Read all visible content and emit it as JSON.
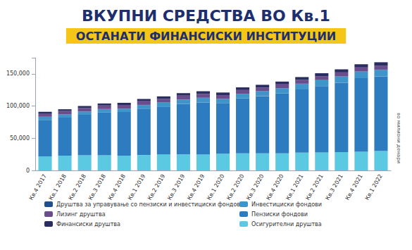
{
  "chart_data": {
    "type": "bar",
    "title": "ВКУПНИ СРЕДСТВА ВО Кв.1",
    "subtitle": "ОСТАНАТИ ФИНАНСИСКИ ИНСТИТУЦИИ",
    "annotation": "во милиони денари",
    "stacked": true,
    "grid": false,
    "categories": [
      "Кв.4 2017",
      "Кв.1 2018",
      "Кв.2 2018",
      "Кв.3 2018",
      "Кв.4 2018",
      "Кв.1 2019",
      "Кв.2 2019",
      "Кв.3 2019",
      "Кв.4 2019",
      "Кв.1 2020",
      "Кв.2 2020",
      "Кв.3 2020",
      "Кв.4 2020",
      "Кв.1 2021",
      "Кв.2 2021",
      "Кв.3 2021",
      "Кв.4 2021",
      "Кв.1 2022"
    ],
    "ylim": [
      0,
      175000
    ],
    "yticks": [
      0,
      {
        "value": 50000,
        "label": "50,000"
      },
      {
        "value": 100000,
        "label": "100,000"
      },
      {
        "value": 150000,
        "label": "150,000"
      }
    ],
    "series": [
      {
        "name": "Осигурителни друштва",
        "color": "#5cc9e3",
        "values": [
          22000,
          23000,
          23500,
          23500,
          23000,
          24000,
          24500,
          25000,
          25000,
          26000,
          26500,
          26500,
          26500,
          27500,
          28000,
          28500,
          29000,
          30000
        ]
      },
      {
        "name": "Пензиски фондови",
        "color": "#2e7cc0",
        "values": [
          56500,
          59000,
          62900,
          66600,
          67800,
          72000,
          74650,
          78350,
          80550,
          78850,
          85350,
          88750,
          93000,
          98300,
          103000,
          107700,
          114350,
          116050
        ]
      },
      {
        "name": "Инвестициски фондови",
        "color": "#3f95c9",
        "values": [
          4500,
          4700,
          5000,
          5000,
          5000,
          5500,
          6000,
          6500,
          7000,
          6000,
          7000,
          7500,
          8000,
          8500,
          9000,
          9500,
          10000,
          10000
        ]
      },
      {
        "name": "Друштва за управување со пензиски и инвестициски фондови",
        "color": "#1f4f8e",
        "values": [
          300,
          300,
          300,
          300,
          300,
          300,
          350,
          350,
          350,
          350,
          350,
          350,
          400,
          400,
          400,
          400,
          450,
          450
        ]
      },
      {
        "name": "Лизинг друштва",
        "color": "#6a4d8c",
        "values": [
          5200,
          5300,
          5400,
          5500,
          5600,
          5700,
          5800,
          5900,
          6000,
          5800,
          5700,
          5700,
          5800,
          5900,
          6000,
          6100,
          6200,
          6300
        ]
      },
      {
        "name": "Финансиски друштва",
        "color": "#2a2d5f",
        "values": [
          2500,
          2700,
          2900,
          3100,
          3300,
          3500,
          3700,
          3900,
          4100,
          4000,
          4100,
          4200,
          4300,
          4400,
          4600,
          4800,
          5000,
          5200
        ]
      }
    ]
  }
}
